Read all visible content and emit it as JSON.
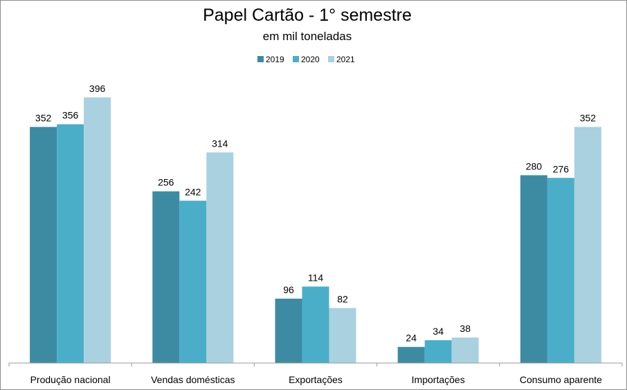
{
  "chart_data": {
    "type": "bar",
    "title": "Papel Cartão - 1° semestre",
    "subtitle": "em mil toneladas",
    "legend_position": "top",
    "grid": false,
    "categories": [
      "Produção nacional",
      "Vendas domésticas",
      "Exportações",
      "Importações",
      "Consumo aparente"
    ],
    "series": [
      {
        "name": "2019",
        "color": "#3d8ba3",
        "values": [
          352,
          256,
          96,
          24,
          280
        ]
      },
      {
        "name": "2020",
        "color": "#4aaec9",
        "values": [
          356,
          242,
          114,
          34,
          276
        ]
      },
      {
        "name": "2021",
        "color": "#a9d1df",
        "values": [
          396,
          314,
          82,
          38,
          352
        ]
      }
    ],
    "ylim": [
      0,
      440
    ]
  }
}
